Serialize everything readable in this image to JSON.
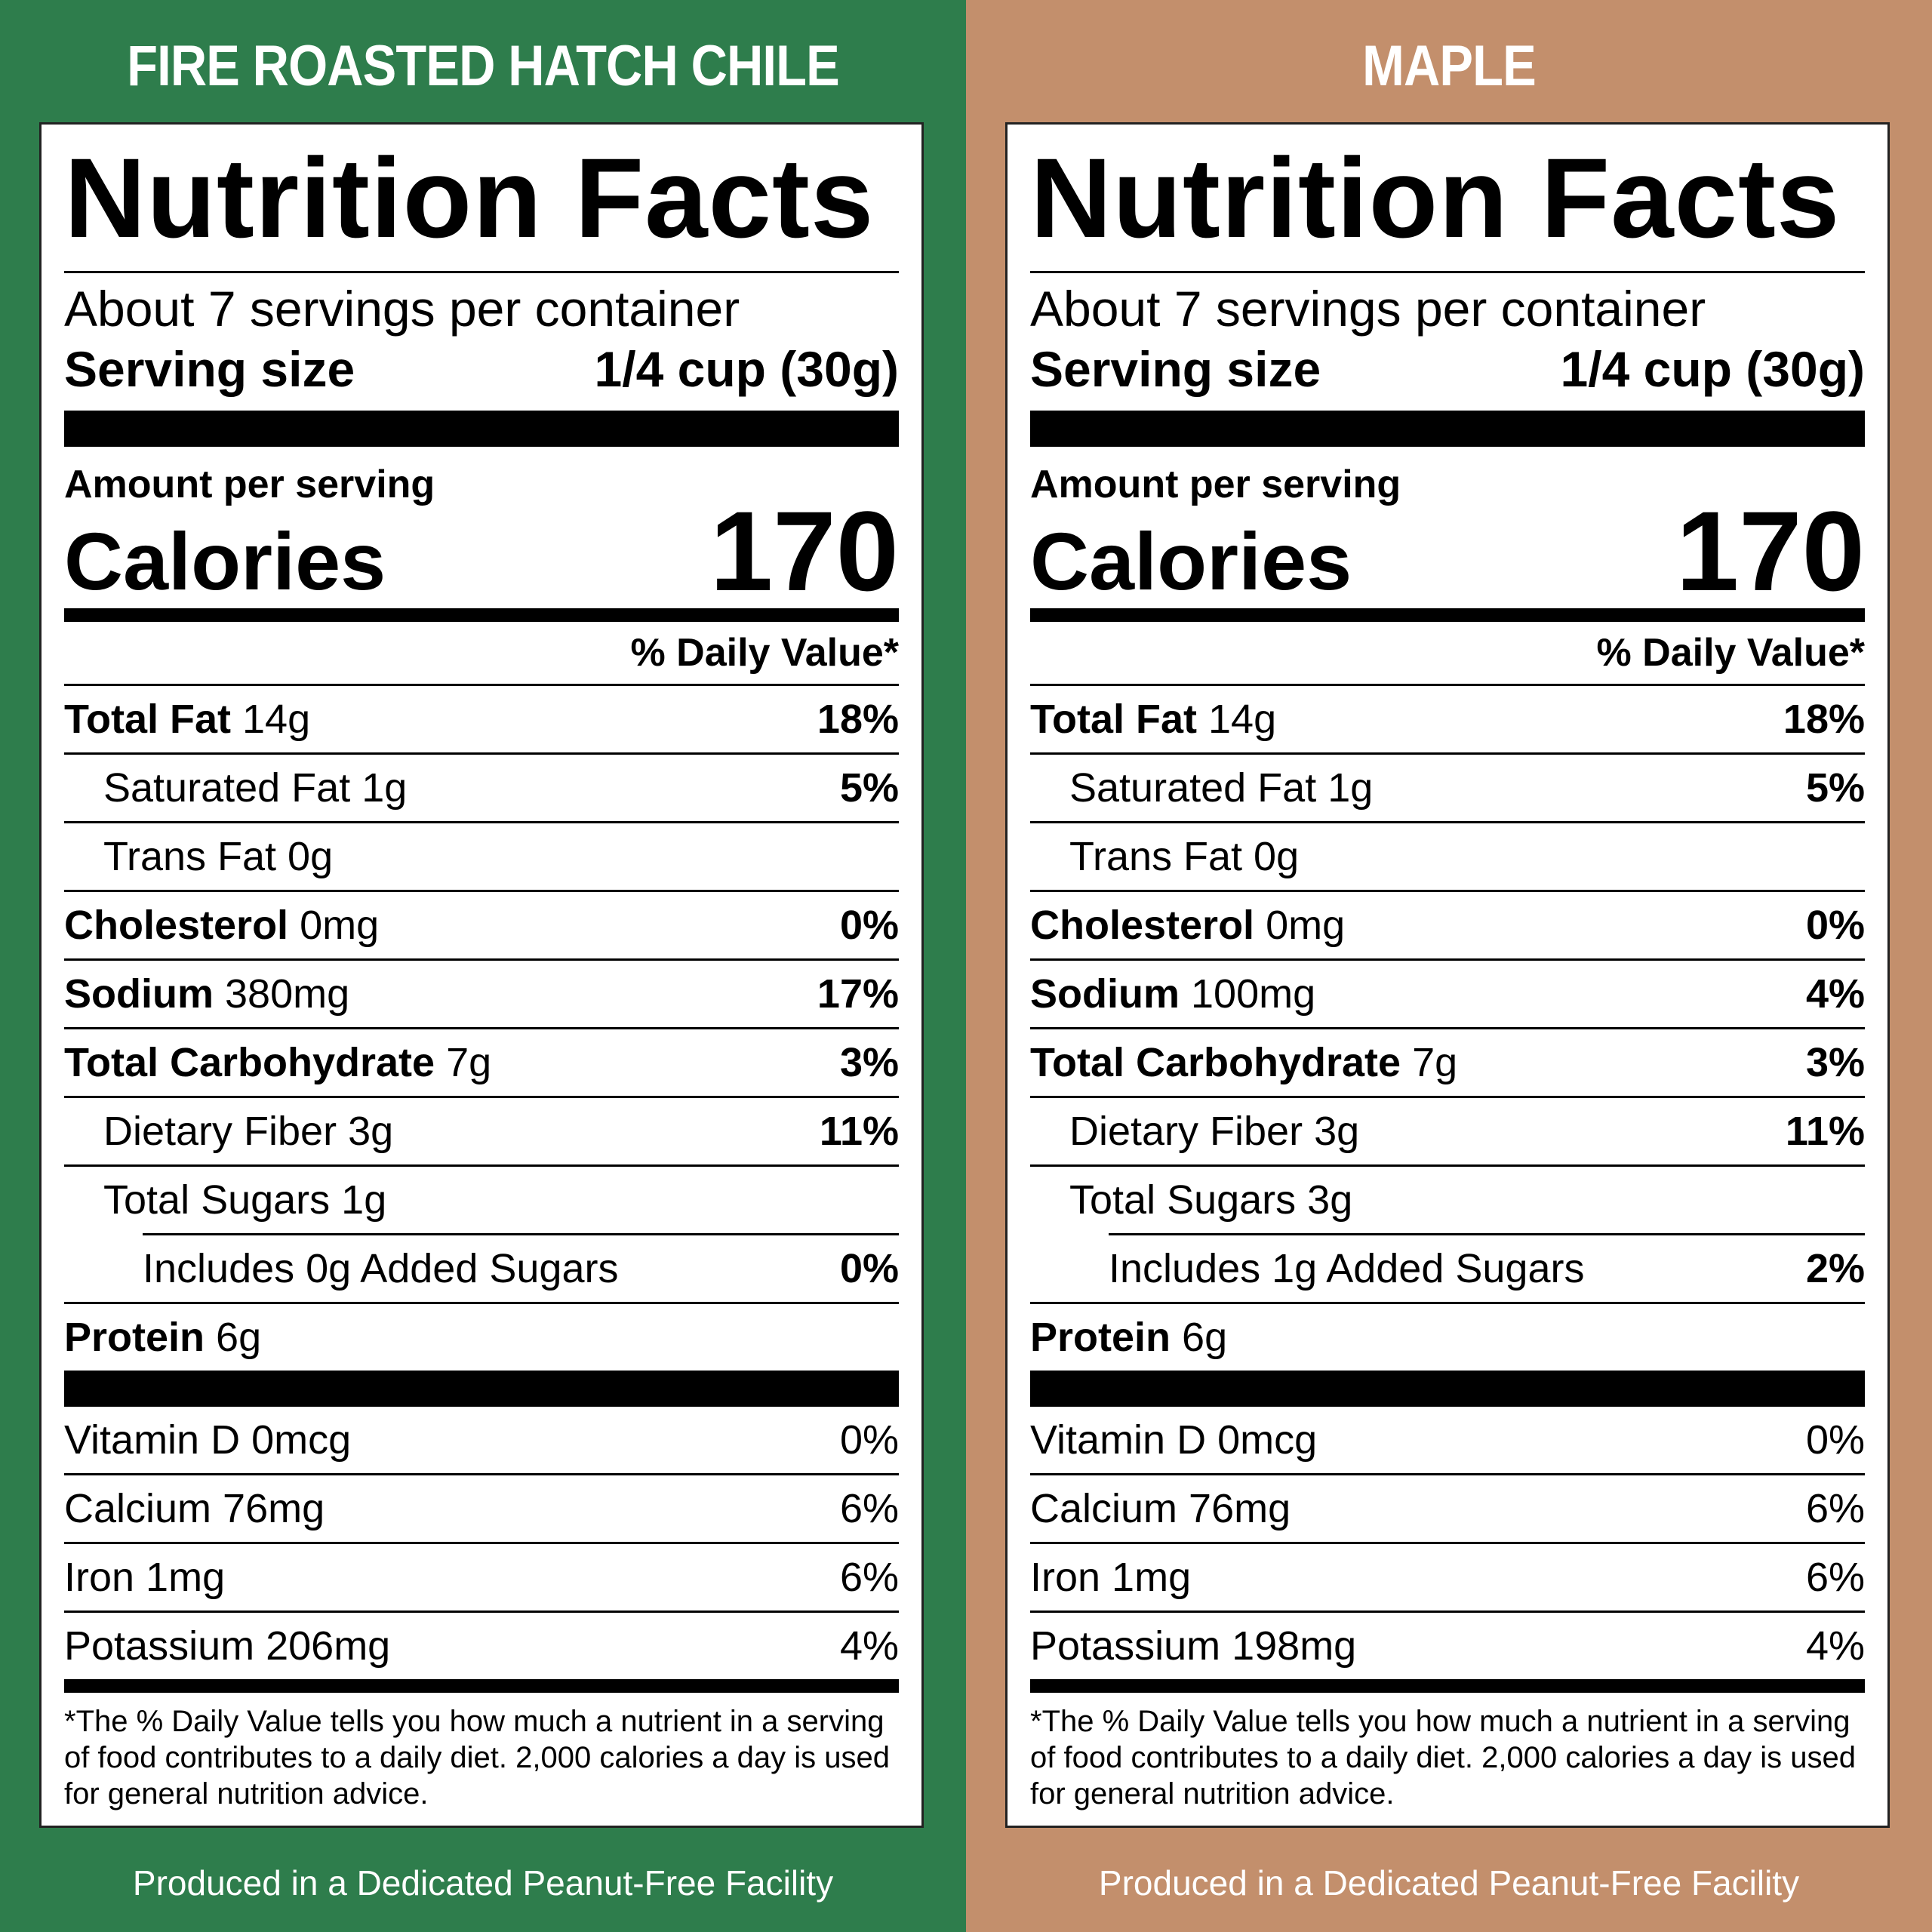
{
  "panels": [
    {
      "flavor": "FIRE ROASTED HATCH CHILE",
      "bg_color": "#2e7d4c",
      "title": "Nutrition Facts",
      "servings": "About 7 servings per container",
      "serving_size_label": "Serving size",
      "serving_size_value": "1/4 cup (30g)",
      "amount_per_serving": "Amount per serving",
      "calories_label": "Calories",
      "calories_value": "170",
      "dv_header": "% Daily Value*",
      "nutrients": {
        "total_fat": {
          "label": "Total Fat",
          "amount": "14g",
          "dv": "18%"
        },
        "saturated_fat": {
          "label": "Saturated Fat 1g",
          "dv": "5%"
        },
        "trans_fat": {
          "label": "Trans Fat 0g"
        },
        "cholesterol": {
          "label": "Cholesterol",
          "amount": "0mg",
          "dv": "0%"
        },
        "sodium": {
          "label": "Sodium",
          "amount": "380mg",
          "dv": "17%"
        },
        "total_carb": {
          "label": "Total Carbohydrate",
          "amount": "7g",
          "dv": "3%"
        },
        "dietary_fiber": {
          "label": "Dietary Fiber 3g",
          "dv": "11%"
        },
        "total_sugars": {
          "label": "Total Sugars 1g"
        },
        "added_sugars": {
          "label": "Includes 0g Added Sugars",
          "dv": "0%"
        },
        "protein": {
          "label": "Protein",
          "amount": "6g"
        }
      },
      "vitamins": {
        "vitamin_d": {
          "label": "Vitamin D 0mcg",
          "dv": "0%"
        },
        "calcium": {
          "label": "Calcium 76mg",
          "dv": "6%"
        },
        "iron": {
          "label": "Iron 1mg",
          "dv": "6%"
        },
        "potassium": {
          "label": "Potassium 206mg",
          "dv": "4%"
        }
      },
      "footnote": "*The % Daily Value tells you how much a nutrient in a serving of food contributes to a daily diet. 2,000 calories a day is used for general nutrition advice.",
      "produced": "Produced in a Dedicated Peanut-Free Facility"
    },
    {
      "flavor": "MAPLE",
      "bg_color": "#c38f6c",
      "title": "Nutrition Facts",
      "servings": "About 7 servings per container",
      "serving_size_label": "Serving size",
      "serving_size_value": "1/4 cup (30g)",
      "amount_per_serving": "Amount per serving",
      "calories_label": "Calories",
      "calories_value": "170",
      "dv_header": "% Daily Value*",
      "nutrients": {
        "total_fat": {
          "label": "Total Fat",
          "amount": "14g",
          "dv": "18%"
        },
        "saturated_fat": {
          "label": "Saturated Fat 1g",
          "dv": "5%"
        },
        "trans_fat": {
          "label": "Trans Fat 0g"
        },
        "cholesterol": {
          "label": "Cholesterol",
          "amount": "0mg",
          "dv": "0%"
        },
        "sodium": {
          "label": "Sodium",
          "amount": "100mg",
          "dv": "4%"
        },
        "total_carb": {
          "label": "Total Carbohydrate",
          "amount": "7g",
          "dv": "3%"
        },
        "dietary_fiber": {
          "label": "Dietary Fiber 3g",
          "dv": "11%"
        },
        "total_sugars": {
          "label": "Total Sugars 3g"
        },
        "added_sugars": {
          "label": "Includes 1g Added Sugars",
          "dv": "2%"
        },
        "protein": {
          "label": "Protein",
          "amount": "6g"
        }
      },
      "vitamins": {
        "vitamin_d": {
          "label": "Vitamin D 0mcg",
          "dv": "0%"
        },
        "calcium": {
          "label": "Calcium 76mg",
          "dv": "6%"
        },
        "iron": {
          "label": "Iron 1mg",
          "dv": "6%"
        },
        "potassium": {
          "label": "Potassium 198mg",
          "dv": "4%"
        }
      },
      "footnote": "*The % Daily Value tells you how much a nutrient in a serving of food contributes to a daily diet. 2,000 calories a day is used for general nutrition advice.",
      "produced": "Produced in a Dedicated Peanut-Free Facility"
    }
  ]
}
